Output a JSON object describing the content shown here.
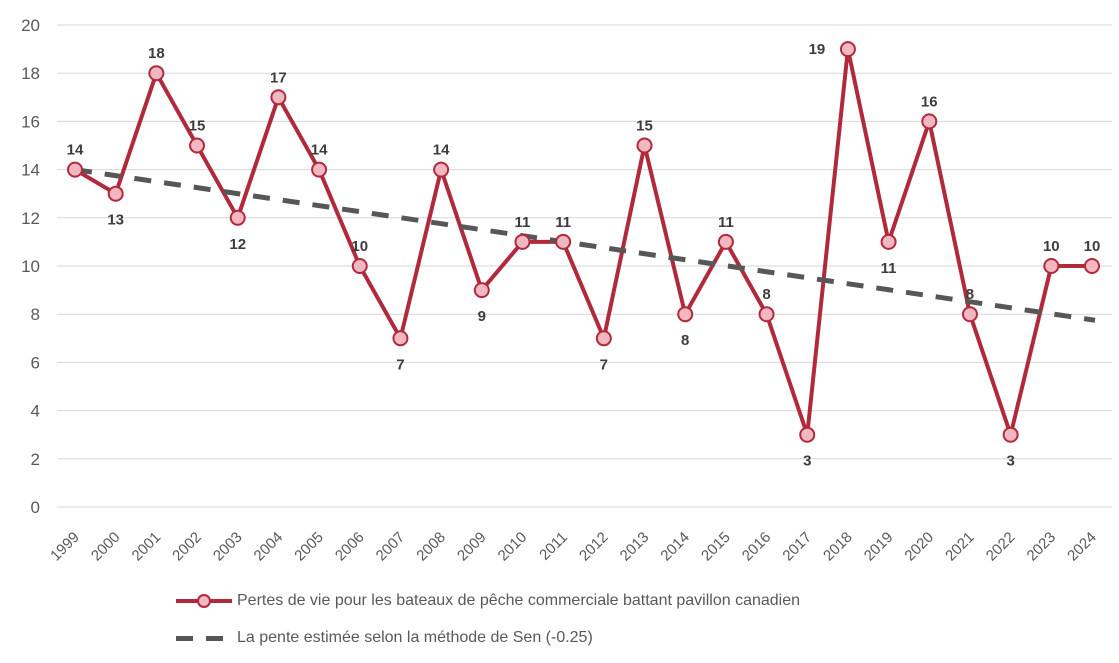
{
  "chart_data": {
    "type": "line",
    "title": "",
    "xlabel": "",
    "ylabel": "",
    "x": [
      1999,
      2000,
      2001,
      2002,
      2003,
      2004,
      2005,
      2006,
      2007,
      2008,
      2009,
      2010,
      2011,
      2012,
      2013,
      2014,
      2015,
      2016,
      2017,
      2018,
      2019,
      2020,
      2021,
      2022,
      2023,
      2024
    ],
    "series": [
      {
        "name": "Pertes de vie pour les bateaux de pêche commerciale battant pavillon canadien",
        "type": "line-with-markers",
        "values": [
          14,
          13,
          18,
          15,
          12,
          17,
          14,
          10,
          7,
          14,
          9,
          11,
          11,
          7,
          15,
          8,
          11,
          8,
          3,
          19,
          11,
          16,
          8,
          3,
          10,
          10
        ],
        "color": "#b02a3c",
        "marker_fill": "#f2b7c0",
        "data_labels": true
      },
      {
        "name": "La pente estimée selon la méthode de Sen (-0.25)",
        "type": "trend",
        "slope": -0.25,
        "start_value": 14.0,
        "end_value": 7.75,
        "color": "#575757",
        "style": "dashed"
      }
    ],
    "ylim": [
      0,
      20
    ],
    "ytick_step": 2,
    "yticks": [
      0,
      2,
      4,
      6,
      8,
      10,
      12,
      14,
      16,
      18,
      20
    ],
    "grid": "horizontal-only",
    "grid_color": "#d7d7d7",
    "tick_label_color": "#595959",
    "data_label_color": "#3d3d3d",
    "legend_position": "bottom",
    "label_below_years": [
      2000,
      2003,
      2007,
      2009,
      2012,
      2014,
      2017,
      2019,
      2022
    ],
    "label_left_years": [
      2018
    ]
  }
}
